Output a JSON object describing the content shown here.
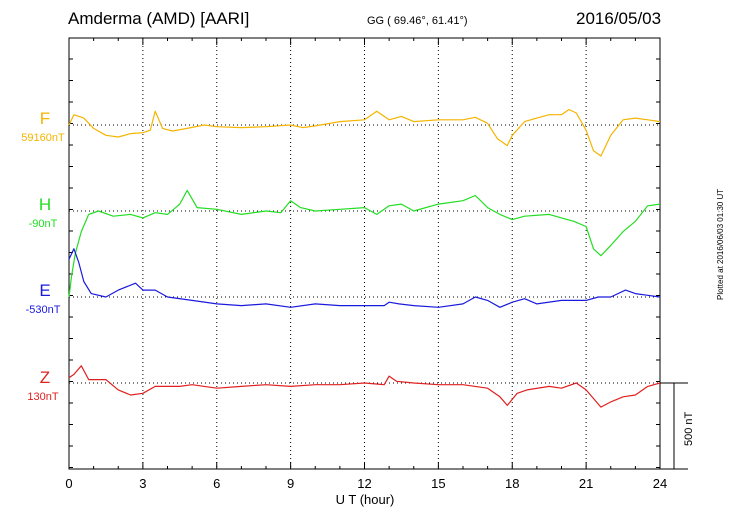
{
  "header": {
    "station": "Amderma (AMD)  [AARI]",
    "coords": "GG ( 69.46°,  61.41°)",
    "date": "2016/05/03"
  },
  "side_note": "Plotted at 2016/06/03 01:30 UT",
  "chart_data": {
    "type": "line",
    "xlabel": "U T (hour)",
    "xlim": [
      0,
      24
    ],
    "xticks": [
      "0",
      "3",
      "6",
      "9",
      "12",
      "15",
      "18",
      "21",
      "24"
    ],
    "scale_bar": {
      "label": "500 nT",
      "value_nT": 500
    },
    "series": [
      {
        "name": "F",
        "base_label": "59160nT",
        "color": "#f5b400",
        "baseline_nT": 59160,
        "points": [
          [
            0,
            0
          ],
          [
            0.2,
            60
          ],
          [
            0.6,
            40
          ],
          [
            1,
            -20
          ],
          [
            1.5,
            -60
          ],
          [
            2,
            -70
          ],
          [
            2.5,
            -50
          ],
          [
            3,
            -45
          ],
          [
            3.3,
            -30
          ],
          [
            3.5,
            80
          ],
          [
            3.8,
            -20
          ],
          [
            4.2,
            -35
          ],
          [
            4.8,
            -20
          ],
          [
            5.5,
            0
          ],
          [
            6,
            -10
          ],
          [
            7,
            -15
          ],
          [
            8,
            -10
          ],
          [
            9,
            0
          ],
          [
            9.5,
            -15
          ],
          [
            10,
            -5
          ],
          [
            11,
            20
          ],
          [
            12,
            30
          ],
          [
            12.5,
            80
          ],
          [
            13,
            30
          ],
          [
            13.5,
            50
          ],
          [
            14,
            20
          ],
          [
            15,
            30
          ],
          [
            16,
            30
          ],
          [
            16.5,
            45
          ],
          [
            17,
            10
          ],
          [
            17.4,
            -80
          ],
          [
            17.8,
            -120
          ],
          [
            18,
            -60
          ],
          [
            18.5,
            20
          ],
          [
            19,
            40
          ],
          [
            19.5,
            60
          ],
          [
            20,
            60
          ],
          [
            20.3,
            90
          ],
          [
            20.6,
            70
          ],
          [
            21,
            -30
          ],
          [
            21.3,
            -150
          ],
          [
            21.6,
            -180
          ],
          [
            22,
            -60
          ],
          [
            22.5,
            30
          ],
          [
            23,
            40
          ],
          [
            23.5,
            30
          ],
          [
            24,
            20
          ]
        ]
      },
      {
        "name": "H",
        "base_label": "-90nT",
        "color": "#22dd22",
        "baseline_nT": -90,
        "points": [
          [
            0,
            -500
          ],
          [
            0.1,
            -380
          ],
          [
            0.25,
            -250
          ],
          [
            0.5,
            -120
          ],
          [
            0.8,
            -20
          ],
          [
            1.2,
            0
          ],
          [
            1.8,
            -30
          ],
          [
            2.5,
            -20
          ],
          [
            3,
            -40
          ],
          [
            3.5,
            -10
          ],
          [
            4,
            -20
          ],
          [
            4.5,
            40
          ],
          [
            4.8,
            120
          ],
          [
            5.2,
            20
          ],
          [
            6,
            10
          ],
          [
            7,
            -20
          ],
          [
            8,
            0
          ],
          [
            8.6,
            -10
          ],
          [
            9,
            60
          ],
          [
            9.4,
            20
          ],
          [
            10,
            0
          ],
          [
            11,
            10
          ],
          [
            12,
            20
          ],
          [
            12.5,
            -20
          ],
          [
            13,
            30
          ],
          [
            13.5,
            40
          ],
          [
            14,
            0
          ],
          [
            15,
            40
          ],
          [
            16,
            60
          ],
          [
            16.5,
            90
          ],
          [
            17,
            20
          ],
          [
            17.5,
            -20
          ],
          [
            18,
            -50
          ],
          [
            18.5,
            -30
          ],
          [
            19.5,
            -20
          ],
          [
            20,
            -40
          ],
          [
            20.5,
            -60
          ],
          [
            21,
            -90
          ],
          [
            21.3,
            -220
          ],
          [
            21.6,
            -260
          ],
          [
            22,
            -200
          ],
          [
            22.5,
            -120
          ],
          [
            23,
            -60
          ],
          [
            23.5,
            30
          ],
          [
            24,
            40
          ]
        ]
      },
      {
        "name": "E",
        "base_label": "-530nT",
        "color": "#1a1add",
        "baseline_nT": -530,
        "points": [
          [
            0,
            220
          ],
          [
            0.2,
            280
          ],
          [
            0.4,
            200
          ],
          [
            0.6,
            90
          ],
          [
            0.9,
            20
          ],
          [
            1.5,
            0
          ],
          [
            2,
            40
          ],
          [
            2.7,
            80
          ],
          [
            3,
            40
          ],
          [
            3.5,
            40
          ],
          [
            4,
            0
          ],
          [
            5,
            -20
          ],
          [
            6,
            -40
          ],
          [
            7,
            -50
          ],
          [
            8,
            -40
          ],
          [
            9,
            -60
          ],
          [
            10,
            -40
          ],
          [
            11,
            -50
          ],
          [
            12,
            -50
          ],
          [
            12.8,
            -50
          ],
          [
            13,
            -30
          ],
          [
            13.4,
            -40
          ],
          [
            14,
            -50
          ],
          [
            15,
            -60
          ],
          [
            16,
            -40
          ],
          [
            16.5,
            0
          ],
          [
            17,
            -20
          ],
          [
            17.5,
            -60
          ],
          [
            18,
            -30
          ],
          [
            18.5,
            -10
          ],
          [
            19,
            -40
          ],
          [
            20,
            -20
          ],
          [
            21,
            -20
          ],
          [
            21.5,
            0
          ],
          [
            22,
            0
          ],
          [
            22.6,
            40
          ],
          [
            23,
            20
          ],
          [
            23.5,
            10
          ],
          [
            24,
            0
          ]
        ]
      },
      {
        "name": "Z",
        "base_label": "130nT",
        "color": "#e02020",
        "baseline_nT": 130,
        "points": [
          [
            0,
            30
          ],
          [
            0.2,
            50
          ],
          [
            0.5,
            100
          ],
          [
            0.8,
            20
          ],
          [
            1.5,
            20
          ],
          [
            2,
            -40
          ],
          [
            2.5,
            -70
          ],
          [
            3,
            -60
          ],
          [
            3.5,
            -20
          ],
          [
            4.5,
            -20
          ],
          [
            5,
            -10
          ],
          [
            6,
            -30
          ],
          [
            7,
            -20
          ],
          [
            8,
            -10
          ],
          [
            9,
            -20
          ],
          [
            10,
            -10
          ],
          [
            11,
            -10
          ],
          [
            12,
            0
          ],
          [
            12.8,
            -10
          ],
          [
            13,
            40
          ],
          [
            13.3,
            10
          ],
          [
            14,
            0
          ],
          [
            15,
            -10
          ],
          [
            16,
            -10
          ],
          [
            17,
            -30
          ],
          [
            17.5,
            -80
          ],
          [
            17.8,
            -130
          ],
          [
            18.2,
            -60
          ],
          [
            18.6,
            -40
          ],
          [
            19.5,
            -20
          ],
          [
            20,
            -30
          ],
          [
            20.6,
            0
          ],
          [
            21,
            -40
          ],
          [
            21.3,
            -90
          ],
          [
            21.6,
            -140
          ],
          [
            22,
            -110
          ],
          [
            22.5,
            -80
          ],
          [
            23,
            -70
          ],
          [
            23.5,
            -20
          ],
          [
            24,
            0
          ]
        ]
      }
    ]
  }
}
